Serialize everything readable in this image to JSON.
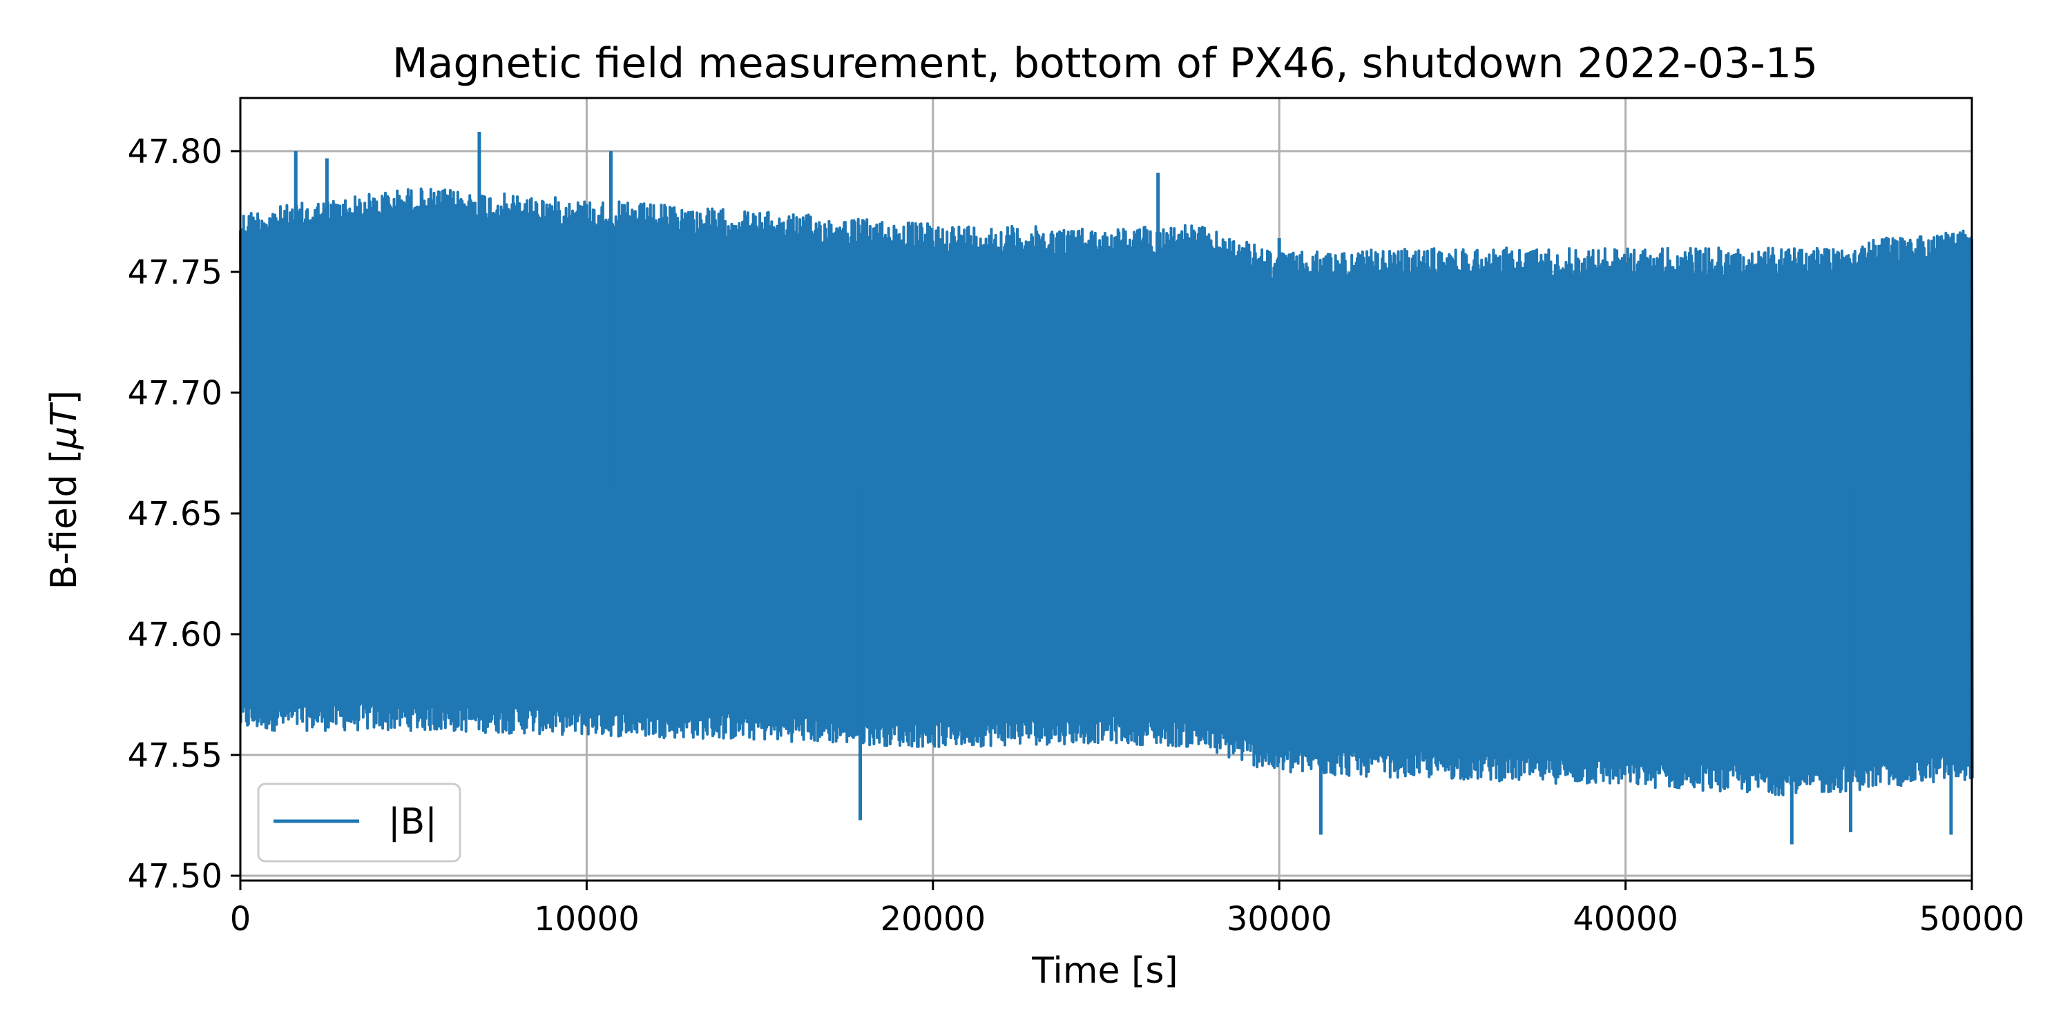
{
  "chart_data": {
    "type": "line",
    "title": "Magnetic field measurement, bottom of PX46, shutdown 2022-03-15",
    "xlabel": "Time [s]",
    "ylabel_prefix": "B-field [",
    "ylabel_mu": "μT",
    "ylabel_suffix": "]",
    "xlim": [
      0,
      50000
    ],
    "ylim": [
      47.498,
      47.822
    ],
    "xticks": [
      0,
      10000,
      20000,
      30000,
      40000,
      50000
    ],
    "xtick_labels": [
      "0",
      "10000",
      "20000",
      "30000",
      "40000",
      "50000"
    ],
    "yticks": [
      47.5,
      47.55,
      47.6,
      47.65,
      47.7,
      47.75,
      47.8
    ],
    "ytick_labels": [
      "47.50",
      "47.55",
      "47.60",
      "47.65",
      "47.70",
      "47.75",
      "47.80"
    ],
    "grid": true,
    "legend": {
      "placement": "lower-left"
    },
    "series": [
      {
        "name": "|B|",
        "color": "#1f77b4",
        "envelope": {
          "x": [
            0,
            5000,
            10000,
            15000,
            20000,
            25000,
            27500,
            30000,
            35000,
            40000,
            45000,
            50000
          ],
          "upper": [
            47.775,
            47.785,
            47.78,
            47.775,
            47.77,
            47.768,
            47.77,
            47.758,
            47.76,
            47.76,
            47.76,
            47.768
          ],
          "lower": [
            47.56,
            47.56,
            47.558,
            47.556,
            47.553,
            47.555,
            47.553,
            47.542,
            47.54,
            47.537,
            47.533,
            47.54
          ]
        },
        "spikes": [
          {
            "x": 1600,
            "y": 47.8
          },
          {
            "x": 2500,
            "y": 47.797
          },
          {
            "x": 6900,
            "y": 47.808
          },
          {
            "x": 10700,
            "y": 47.8
          },
          {
            "x": 26500,
            "y": 47.791
          },
          {
            "x": 30000,
            "y": 47.764
          },
          {
            "x": 17900,
            "y": 47.523
          },
          {
            "x": 31200,
            "y": 47.517
          },
          {
            "x": 44800,
            "y": 47.513
          },
          {
            "x": 46500,
            "y": 47.518
          },
          {
            "x": 49400,
            "y": 47.517
          }
        ]
      }
    ]
  }
}
